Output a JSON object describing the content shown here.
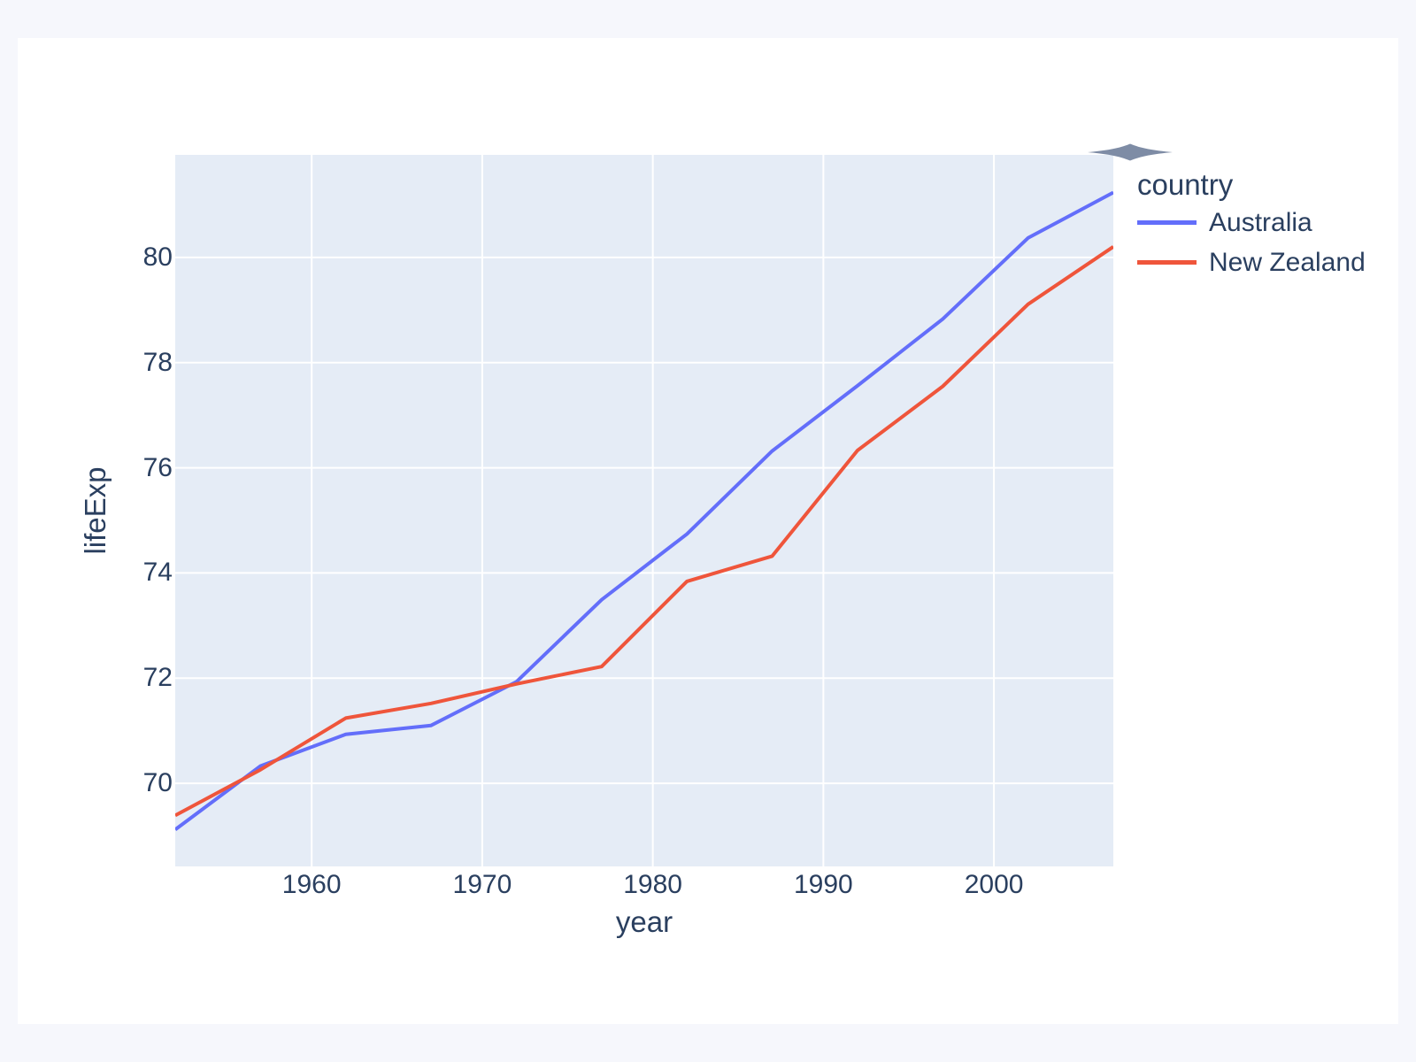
{
  "page": {
    "background_color": "#F6F7FC",
    "card_color": "#FFFFFF"
  },
  "modebar": {
    "icon": "modebar-expand-icon",
    "color": "#7E8CA5"
  },
  "chart_data": {
    "type": "line",
    "xlabel": "year",
    "ylabel": "lifeExp",
    "legend_title": "country",
    "legend_position": "right",
    "grid": true,
    "plot_bgcolor": "#E5ECF6",
    "grid_color": "#FFFFFF",
    "text_color": "#2A3F5F",
    "x": [
      1952,
      1957,
      1962,
      1967,
      1972,
      1977,
      1982,
      1987,
      1992,
      1997,
      2002,
      2007
    ],
    "series": [
      {
        "name": "Australia",
        "color": "#636EFA",
        "values": [
          69.12,
          70.33,
          70.93,
          71.1,
          71.93,
          73.49,
          74.74,
          76.32,
          77.56,
          78.83,
          80.37,
          81.235
        ]
      },
      {
        "name": "New Zealand",
        "color": "#EF553B",
        "values": [
          69.39,
          70.26,
          71.24,
          71.52,
          71.89,
          72.22,
          73.84,
          74.32,
          76.33,
          77.55,
          79.11,
          80.204
        ]
      }
    ],
    "xlim": [
      1952,
      2007
    ],
    "ylim": [
      68.42,
      81.95
    ],
    "xticks": [
      1960,
      1970,
      1980,
      1990,
      2000
    ],
    "yticks": [
      70,
      72,
      74,
      76,
      78,
      80
    ]
  }
}
